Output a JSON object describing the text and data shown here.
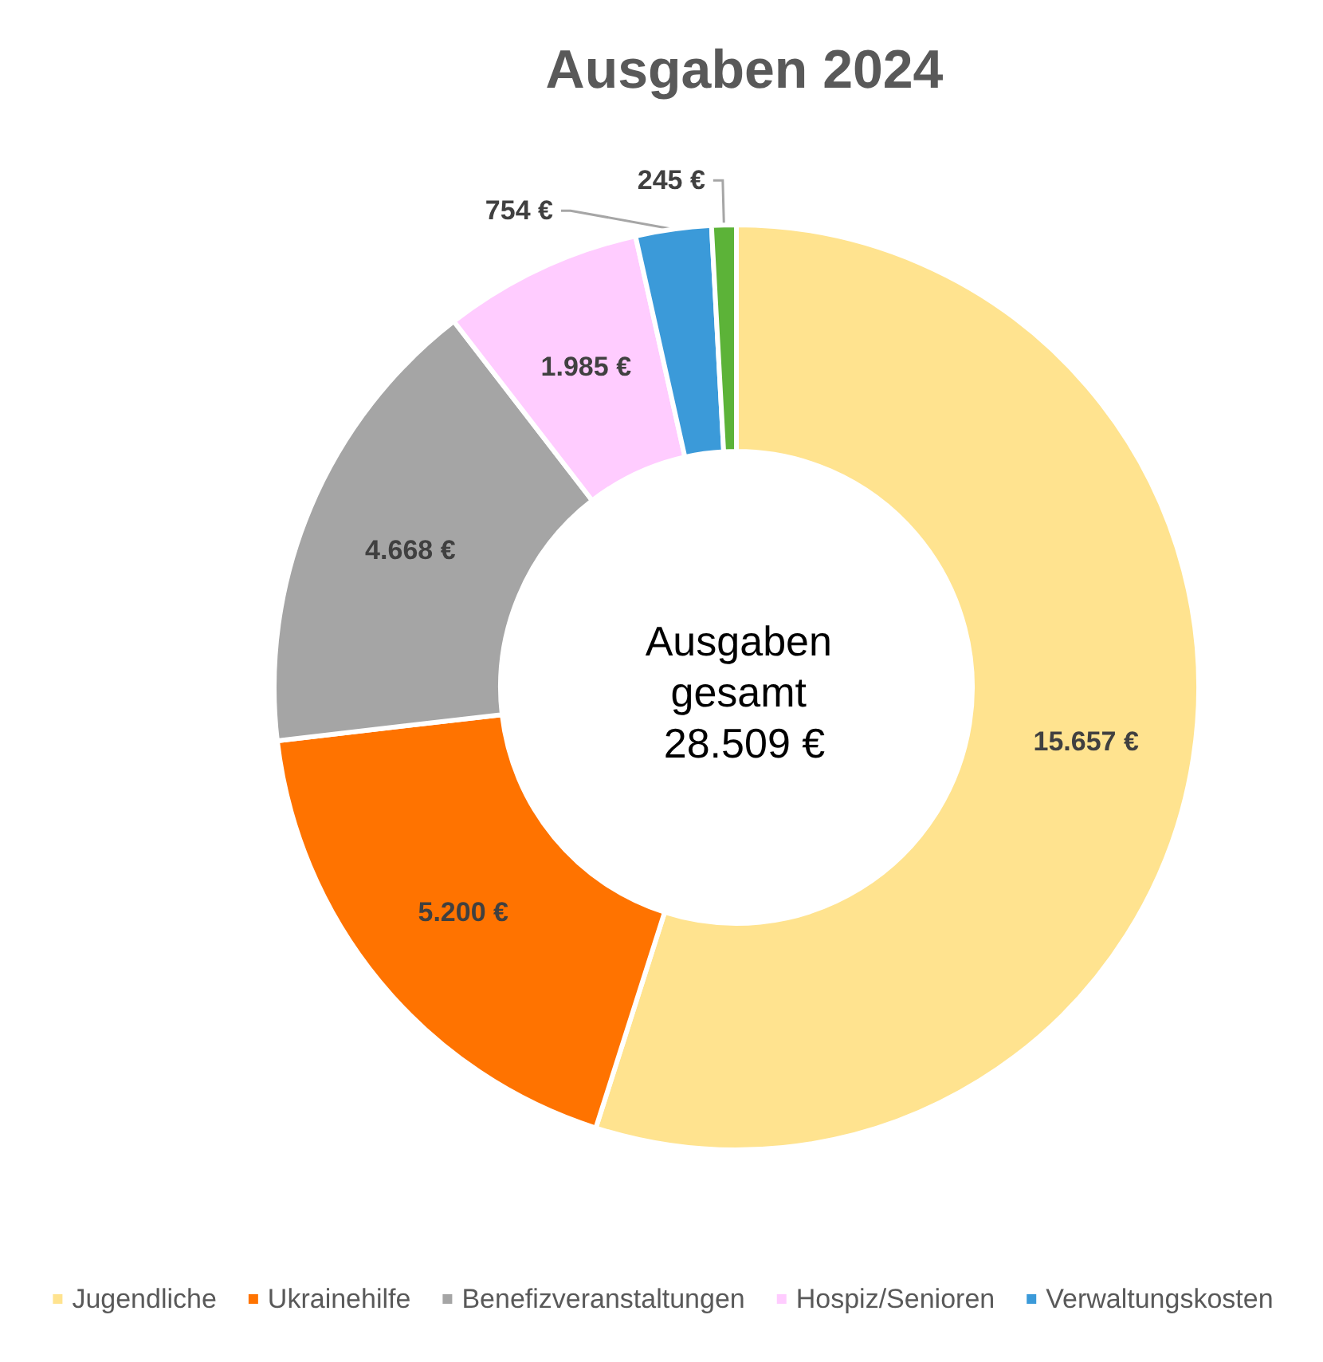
{
  "chart_data": {
    "type": "donut",
    "title": "Ausgaben 2024",
    "categories": [
      "Jugendliche",
      "Ukrainehilfe",
      "Benefizveranstaltungen",
      "Hospiz/Senioren",
      "Verwaltungskosten",
      null
    ],
    "values": [
      15657,
      5200,
      4668,
      1985,
      754,
      245
    ],
    "value_labels": [
      "15.657 €",
      "5.200 €",
      "4.668 €",
      "1.985 €",
      "754 €",
      "245 €"
    ],
    "colors": [
      "#ffe38f",
      "#ff7300",
      "#a5a5a5",
      "#ffccff",
      "#3b9ad9",
      "#5cb338"
    ],
    "annotations": [
      "Ausgaben gesamt 28.509 €"
    ],
    "legend": "bottom"
  }
}
